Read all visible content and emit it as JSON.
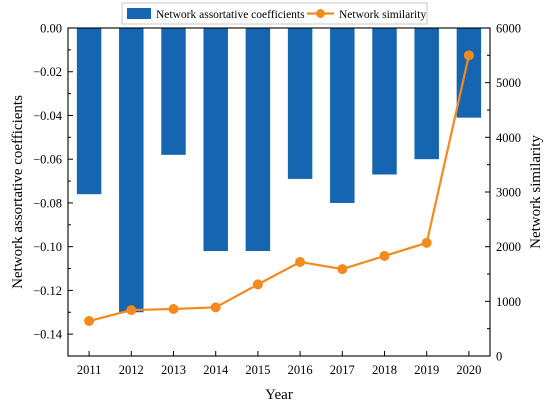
{
  "chart_data": {
    "type": "bar+line",
    "categories": [
      "2011",
      "2012",
      "2013",
      "2014",
      "2015",
      "2016",
      "2017",
      "2018",
      "2019",
      "2020"
    ],
    "xlabel": "Year",
    "series": [
      {
        "name": "Network assortative coefficients",
        "type": "bar",
        "axis": "left",
        "color": "#1565b0",
        "values": [
          -0.076,
          -0.13,
          -0.058,
          -0.102,
          -0.102,
          -0.069,
          -0.08,
          -0.067,
          -0.06,
          -0.041
        ]
      },
      {
        "name": "Network similarity",
        "type": "line",
        "axis": "right",
        "color": "#f28a1e",
        "values": [
          640,
          840,
          860,
          890,
          1310,
          1720,
          1590,
          1830,
          2070,
          5500
        ]
      }
    ],
    "y_left": {
      "label": "Network assortative coefficients",
      "range": [
        -0.15,
        0.0
      ],
      "ticks": [
        0.0,
        -0.02,
        -0.04,
        -0.06,
        -0.08,
        -0.1,
        -0.12,
        -0.14
      ],
      "tick_labels": [
        "0.00",
        "−0.02",
        "−0.04",
        "−0.06",
        "−0.08",
        "−0.10",
        "−0.12",
        "−0.14"
      ]
    },
    "y_right": {
      "label": "Network similarity",
      "range": [
        0,
        6000
      ],
      "ticks": [
        0,
        1000,
        2000,
        3000,
        4000,
        5000,
        6000
      ],
      "tick_labels": [
        "0",
        "1000",
        "2000",
        "3000",
        "4000",
        "5000",
        "6000"
      ]
    },
    "legend": {
      "position": "top-center"
    },
    "grid": false
  }
}
